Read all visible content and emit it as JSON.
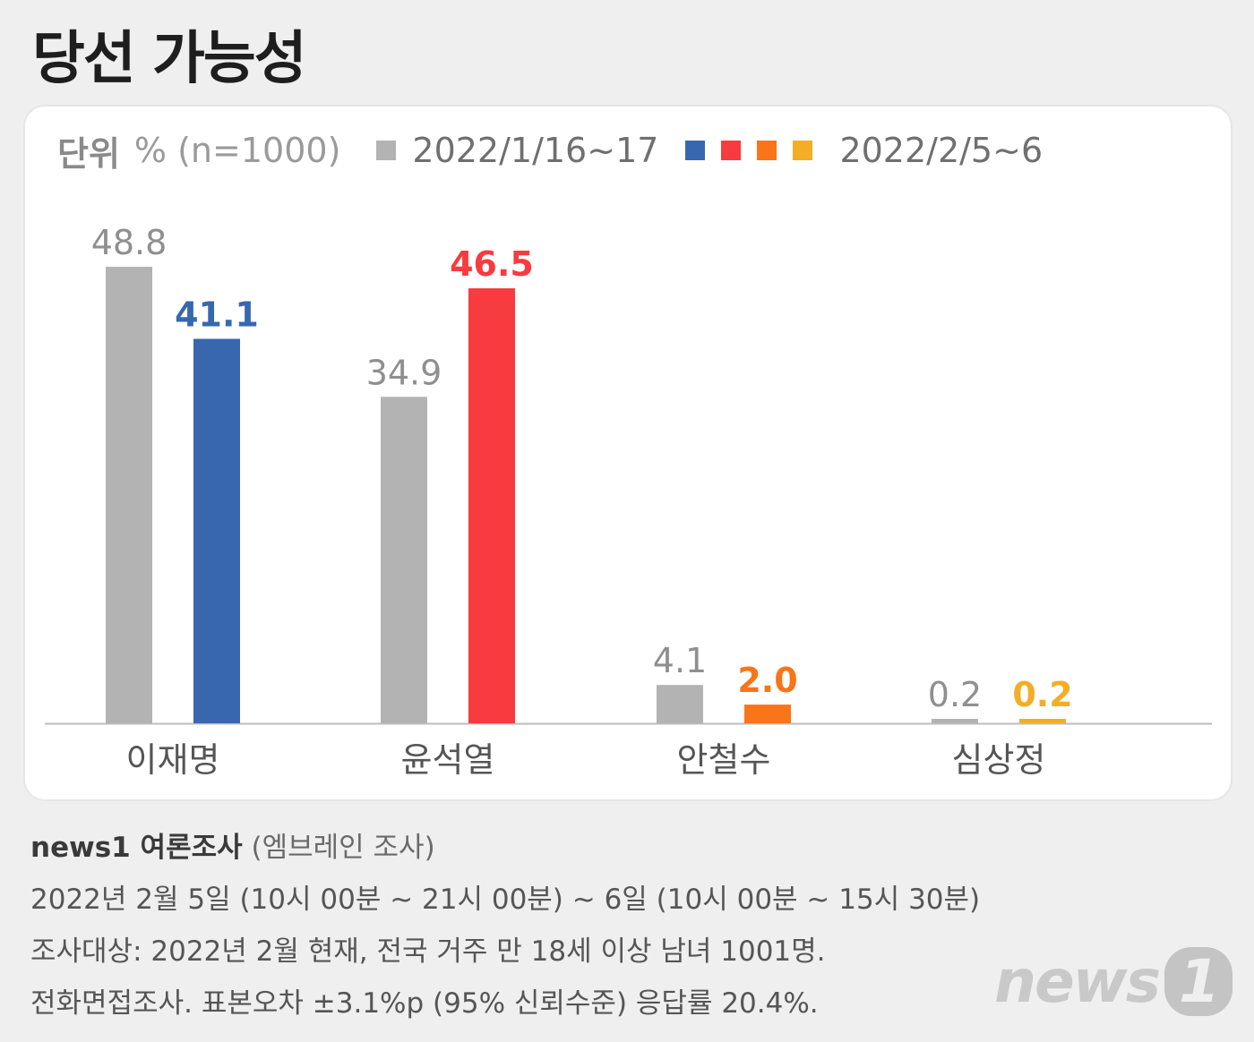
{
  "title": "당선 가능성",
  "legend": {
    "unit_label": "단위",
    "unit_value": "% (n=1000)",
    "period1": "2022/1/16~17",
    "period2": "2022/2/5~6"
  },
  "colors": {
    "gray": "#b3b3b3",
    "blue": "#3867b0",
    "red": "#f73b3e",
    "orange": "#f97519",
    "yellow": "#f3ad27",
    "gray_label": "#8f8f8f"
  },
  "chart_data": {
    "type": "bar",
    "title": "당선 가능성",
    "categories": [
      "이재명",
      "윤석열",
      "안철수",
      "심상정"
    ],
    "series": [
      {
        "name": "2022/1/16~17",
        "values": [
          48.8,
          34.9,
          4.1,
          0.2
        ]
      },
      {
        "name": "2022/2/5~6",
        "values": [
          41.1,
          46.5,
          2.0,
          0.2
        ],
        "colors": [
          "#3867b0",
          "#f73b3e",
          "#f97519",
          "#f3ad27"
        ]
      }
    ],
    "value_labels": {
      "series1": [
        "48.8",
        "34.9",
        "4.1",
        "0.2"
      ],
      "series2": [
        "41.1",
        "46.5",
        "2.0",
        "0.2"
      ]
    },
    "ylim": [
      0,
      50
    ],
    "unit": "%",
    "grid": false,
    "legend_position": "top-left"
  },
  "notes": {
    "brand": "news1 여론조사",
    "company": "(엠브레인 조사)",
    "line2": "2022년 2월 5일 (10시 00분 ~ 21시 00분) ~ 6일 (10시 00분 ~ 15시 30분)",
    "line3": "조사대상: 2022년 2월 현재, 전국 거주 만 18세 이상 남녀 1001명.",
    "line4": "전화면접조사. 표본오차 ±3.1%p (95% 신뢰수준) 응답률 20.4%."
  },
  "logo": {
    "text": "news",
    "mark": "1"
  }
}
